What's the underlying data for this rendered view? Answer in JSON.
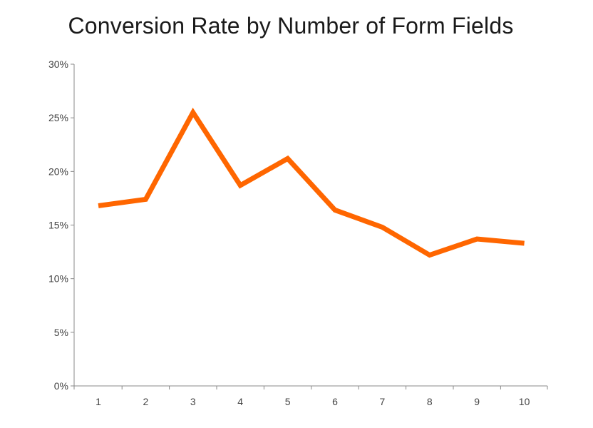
{
  "chart_data": {
    "type": "line",
    "title": "Conversion Rate by Number of Form Fields",
    "xlabel": "",
    "ylabel": "",
    "categories": [
      "1",
      "2",
      "3",
      "4",
      "5",
      "6",
      "7",
      "8",
      "9",
      "10"
    ],
    "series": [
      {
        "values": [
          16.8,
          17.4,
          25.5,
          18.7,
          21.2,
          16.4,
          14.8,
          12.2,
          13.7,
          13.3
        ]
      }
    ],
    "ylim": [
      0,
      30
    ],
    "yticks": [
      {
        "value": 0,
        "label": "0%"
      },
      {
        "value": 5,
        "label": "5%"
      },
      {
        "value": 10,
        "label": "10%"
      },
      {
        "value": 15,
        "label": "15%"
      },
      {
        "value": 20,
        "label": "20%"
      },
      {
        "value": 25,
        "label": "25%"
      },
      {
        "value": 30,
        "label": "30%"
      }
    ],
    "line_color": "#ff6600",
    "grid": false,
    "legend": "none"
  }
}
